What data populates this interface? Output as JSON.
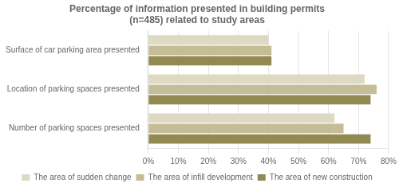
{
  "chart_data": {
    "type": "bar",
    "orientation": "horizontal",
    "title": "Percentage of information presented in building permits\n(n=485) related to study areas",
    "categories": [
      "Surface of car parking area presented",
      "Location of parking spaces presented",
      "Number of parking spaces presented"
    ],
    "series": [
      {
        "name": "The area of sudden change",
        "color": "#ddd9c3",
        "values": [
          0.4,
          0.72,
          0.62
        ]
      },
      {
        "name": "The area of infill development",
        "color": "#c4bd97",
        "values": [
          0.41,
          0.76,
          0.65
        ]
      },
      {
        "name": "The area of new construction",
        "color": "#938953",
        "values": [
          0.41,
          0.74,
          0.74
        ]
      }
    ],
    "xlim": [
      0,
      0.8
    ],
    "xticks": [
      {
        "value": 0.0,
        "label": "0%"
      },
      {
        "value": 0.1,
        "label": "10%"
      },
      {
        "value": 0.2,
        "label": "20%"
      },
      {
        "value": 0.3,
        "label": "30%"
      },
      {
        "value": 0.4,
        "label": "40%"
      },
      {
        "value": 0.5,
        "label": "50%"
      },
      {
        "value": 0.6,
        "label": "60%"
      },
      {
        "value": 0.7,
        "label": "70%"
      },
      {
        "value": 0.8,
        "label": "80%"
      }
    ],
    "grid": true,
    "legend": "bottom"
  }
}
